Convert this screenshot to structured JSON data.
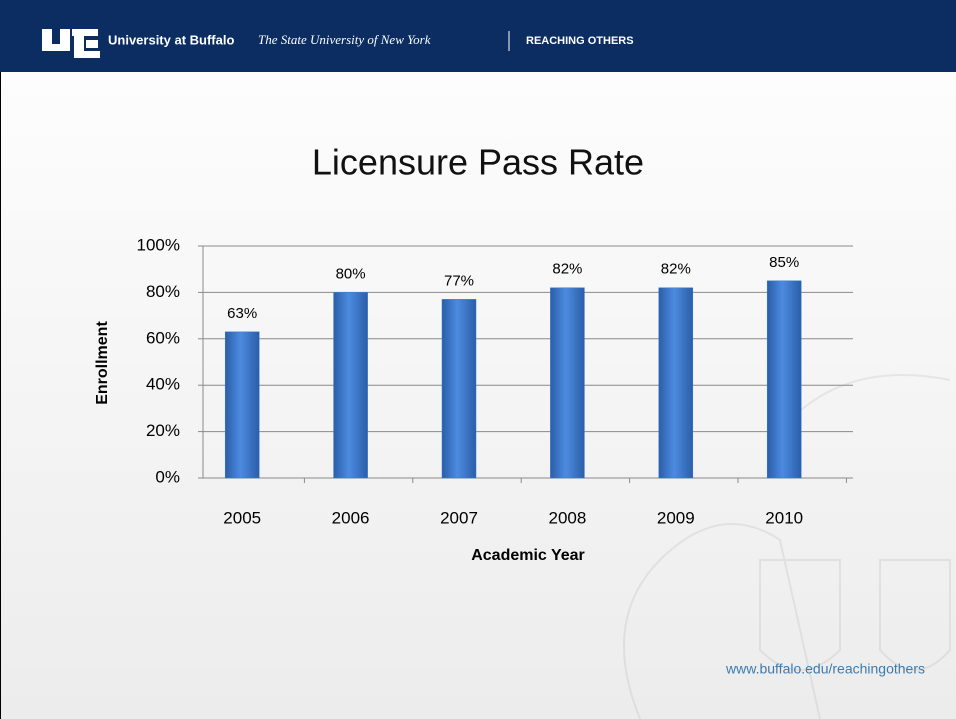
{
  "header": {
    "university": "University at Buffalo",
    "tagline": "The State University of New York",
    "slogan": "REACHING OTHERS"
  },
  "footer_url": "www.buffalo.edu/reachingothers",
  "chart_data": {
    "type": "bar",
    "title": "Licensure Pass Rate",
    "x_label": "Academic Year",
    "y_label": "Enrollment",
    "categories": [
      "2005",
      "2006",
      "2007",
      "2008",
      "2009",
      "2010"
    ],
    "values": [
      63,
      80,
      77,
      82,
      82,
      85
    ],
    "value_labels": [
      "63%",
      "80%",
      "77%",
      "82%",
      "82%",
      "85%"
    ],
    "color": "#3a78c8",
    "ylim": [
      0,
      100
    ],
    "yticks": [
      {
        "value": 0,
        "label": "0%"
      },
      {
        "value": 20,
        "label": "20%"
      },
      {
        "value": 40,
        "label": "40%"
      },
      {
        "value": 60,
        "label": "60%"
      },
      {
        "value": 80,
        "label": "80%"
      },
      {
        "value": 100,
        "label": "100%"
      }
    ],
    "grid": true
  }
}
